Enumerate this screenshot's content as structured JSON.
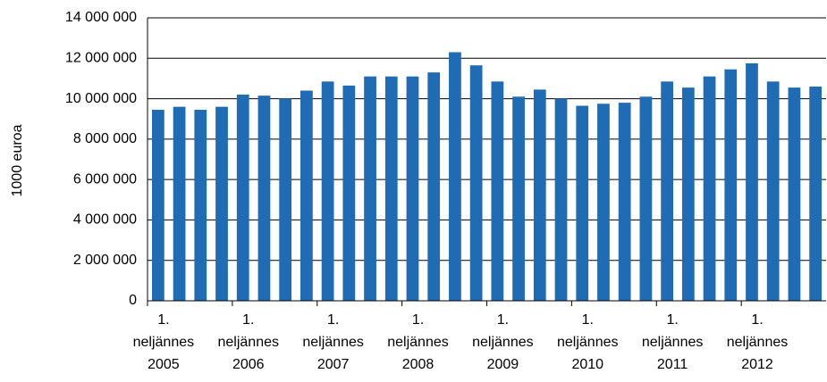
{
  "chart_data": {
    "type": "bar",
    "y_label": "1000 euroa",
    "categories": [
      "1. neljännes 2005",
      null,
      null,
      null,
      "1. neljännes 2006",
      null,
      null,
      null,
      "1. neljännes 2007",
      null,
      null,
      null,
      "1. neljännes 2008",
      null,
      null,
      null,
      "1. neljännes 2009",
      null,
      null,
      null,
      "1. neljännes 2010",
      null,
      null,
      null,
      "1. neljännes 2011",
      null,
      null,
      null,
      "1. neljännes 2012",
      null,
      null,
      null
    ],
    "values": [
      9450000,
      9600000,
      9450000,
      9600000,
      10200000,
      10150000,
      10000000,
      10400000,
      10850000,
      10650000,
      11100000,
      11100000,
      11100000,
      11300000,
      12300000,
      11650000,
      10850000,
      10100000,
      10450000,
      10000000,
      9650000,
      9750000,
      9800000,
      10100000,
      10850000,
      10550000,
      11100000,
      11450000,
      11750000,
      10850000,
      10550000,
      10600000
    ],
    "color": "#1f6cb4",
    "ylim": [
      0,
      14000000
    ],
    "yticks": [
      0,
      {
        "value": 2000000,
        "label": "2 000 000"
      },
      {
        "value": 4000000,
        "label": "4 000 000"
      },
      {
        "value": 6000000,
        "label": "6 000 000"
      },
      {
        "value": 8000000,
        "label": "8 000 000"
      },
      {
        "value": 10000000,
        "label": "10 000 000"
      },
      {
        "value": 12000000,
        "label": "12 000 000"
      },
      {
        "value": 14000000,
        "label": "14 000 000"
      }
    ],
    "grid": true
  }
}
